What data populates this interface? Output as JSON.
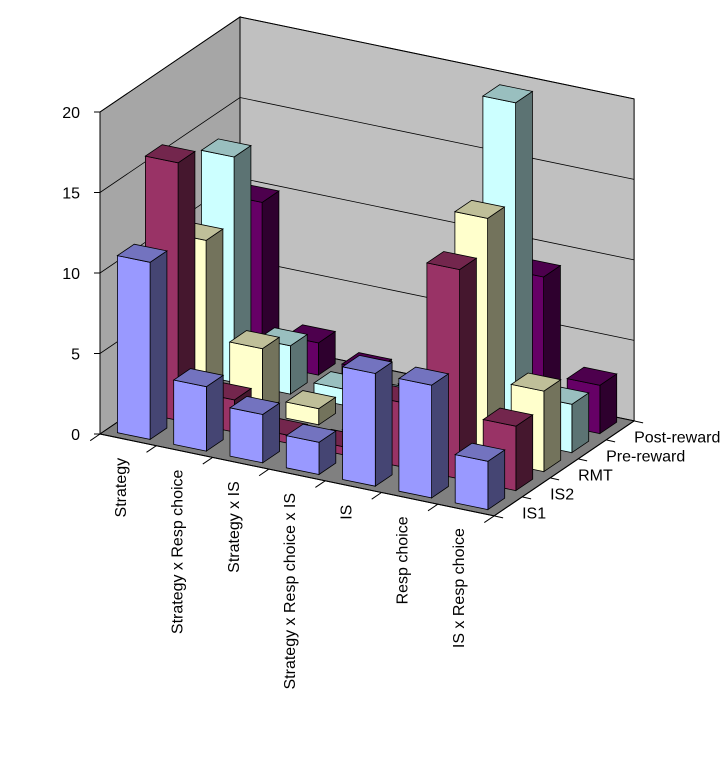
{
  "chart_data": {
    "type": "bar3d",
    "categories": [
      "Strategy",
      "Strategy x Resp choice",
      "Strategy x IS",
      "Strategy x Resp choice x IS",
      "IS",
      "Resp choice",
      "IS x Resp choice"
    ],
    "series": [
      {
        "name": "IS1",
        "color": "#9999ff",
        "values": [
          11,
          4,
          3,
          2,
          7,
          7,
          3
        ]
      },
      {
        "name": "IS2",
        "color": "#993366",
        "values": [
          16,
          2,
          0.5,
          0.5,
          4,
          13,
          4
        ]
      },
      {
        "name": "RMT",
        "color": "#ffffcc",
        "values": [
          10,
          4,
          1,
          0,
          2.5,
          15,
          5
        ]
      },
      {
        "name": "Pre-reward",
        "color": "#ccffff",
        "values": [
          14,
          3,
          1,
          1,
          2,
          21,
          3
        ]
      },
      {
        "name": "Post-reward",
        "color": "#660066",
        "values": [
          10,
          2,
          1,
          0.5,
          0.5,
          9,
          3
        ]
      }
    ],
    "zlim": [
      0,
      20
    ],
    "zticks": [
      "0",
      "5",
      "10",
      "15",
      "20"
    ],
    "grid": true
  }
}
